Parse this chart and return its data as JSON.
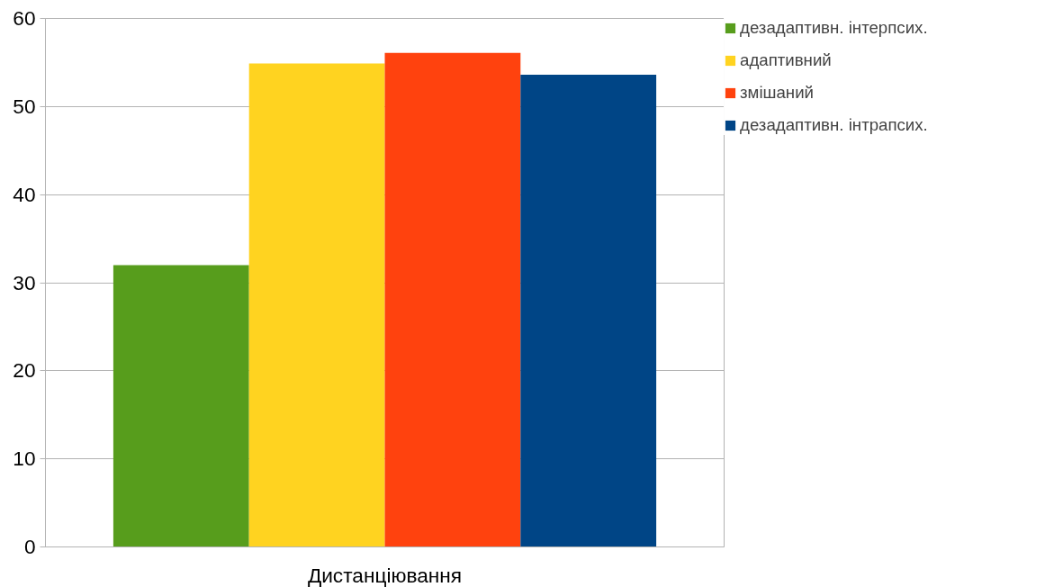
{
  "chart_data": {
    "type": "bar",
    "categories": [
      "Дистанціювання"
    ],
    "series": [
      {
        "name": "дезадаптивн. інтерпсих.",
        "color": "#579d1c",
        "values": [
          32.0
        ]
      },
      {
        "name": "адаптивний",
        "color": "#ffd320",
        "values": [
          54.9
        ]
      },
      {
        "name": "змішаний",
        "color": "#ff420e",
        "values": [
          56.1
        ]
      },
      {
        "name": "дезадаптивн. інтрапсих.",
        "color": "#004586",
        "values": [
          53.6
        ]
      }
    ],
    "ylim": [
      0,
      60
    ],
    "yticks": [
      0,
      10,
      20,
      30,
      40,
      50,
      60
    ],
    "grid": "y",
    "legend": "right"
  }
}
